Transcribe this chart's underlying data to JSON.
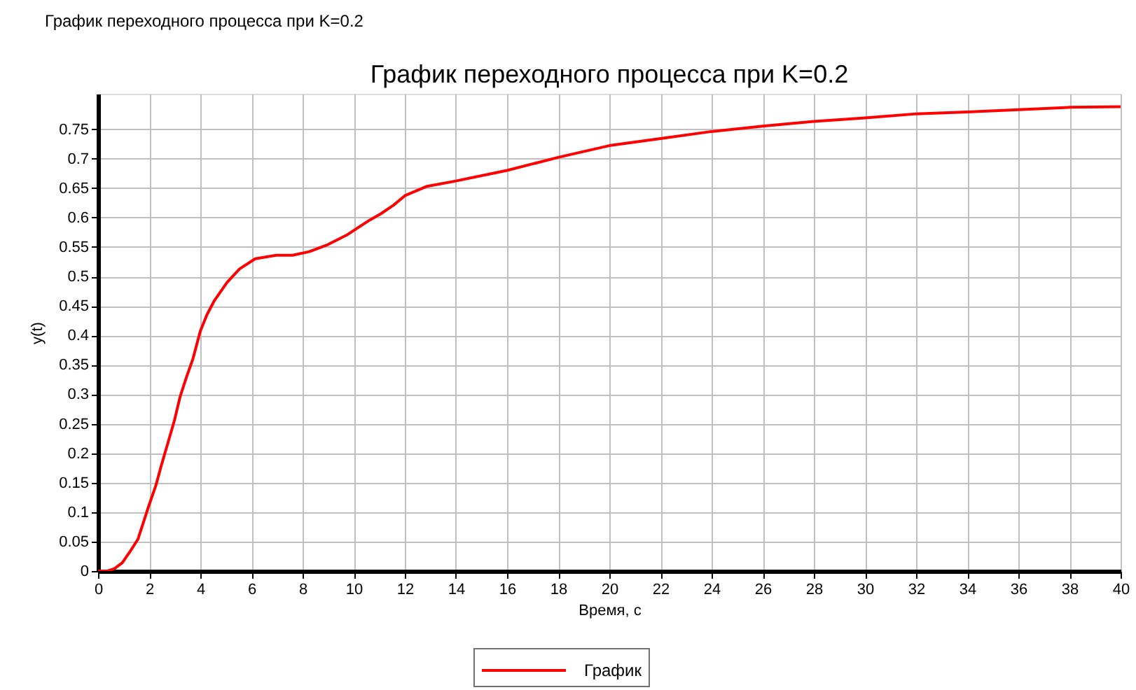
{
  "chart_data": {
    "type": "line",
    "title": "График переходного процесса при K=0.2",
    "xlabel": "Время, с",
    "ylabel": "y(t)",
    "annotations": [
      "График переходного процесса при K=0.2"
    ],
    "xlim": [
      0,
      40
    ],
    "ylim": [
      0,
      0.81
    ],
    "xticks": [
      0,
      2,
      4,
      6,
      8,
      10,
      12,
      14,
      16,
      18,
      20,
      22,
      24,
      26,
      28,
      30,
      32,
      34,
      36,
      38,
      40
    ],
    "yticks": [
      0,
      0.05,
      0.1,
      0.15,
      0.2,
      0.25,
      0.3,
      0.35,
      0.4,
      0.45,
      0.5,
      0.55,
      0.6,
      0.65,
      0.7,
      0.75
    ],
    "grid": true,
    "legend": "bottom",
    "marker": "none",
    "line_style": "solid",
    "series": [
      {
        "name": "График",
        "color": "#ff0000",
        "x": [
          0,
          0.37,
          0.64,
          0.95,
          1.25,
          1.56,
          1.74,
          1.98,
          2.26,
          2.48,
          2.75,
          2.99,
          3.21,
          3.45,
          3.71,
          4.0,
          4.26,
          4.55,
          5.05,
          5.54,
          6.15,
          6.97,
          7.61,
          8.26,
          8.99,
          9.72,
          10.64,
          11.05,
          11.56,
          12,
          12.87,
          14,
          16,
          18,
          20,
          22,
          24,
          26,
          28,
          30,
          32,
          34,
          36,
          38,
          40
        ],
        "values": [
          0,
          0,
          0.004,
          0.014,
          0.033,
          0.054,
          0.078,
          0.11,
          0.145,
          0.18,
          0.22,
          0.256,
          0.296,
          0.328,
          0.36,
          0.407,
          0.435,
          0.459,
          0.49,
          0.513,
          0.53,
          0.536,
          0.536,
          0.542,
          0.554,
          0.57,
          0.596,
          0.606,
          0.621,
          0.637,
          0.653,
          0.662,
          0.68,
          0.702,
          0.722,
          0.734,
          0.746,
          0.755,
          0.763,
          0.769,
          0.776,
          0.779,
          0.783,
          0.787,
          0.788
        ]
      }
    ]
  }
}
